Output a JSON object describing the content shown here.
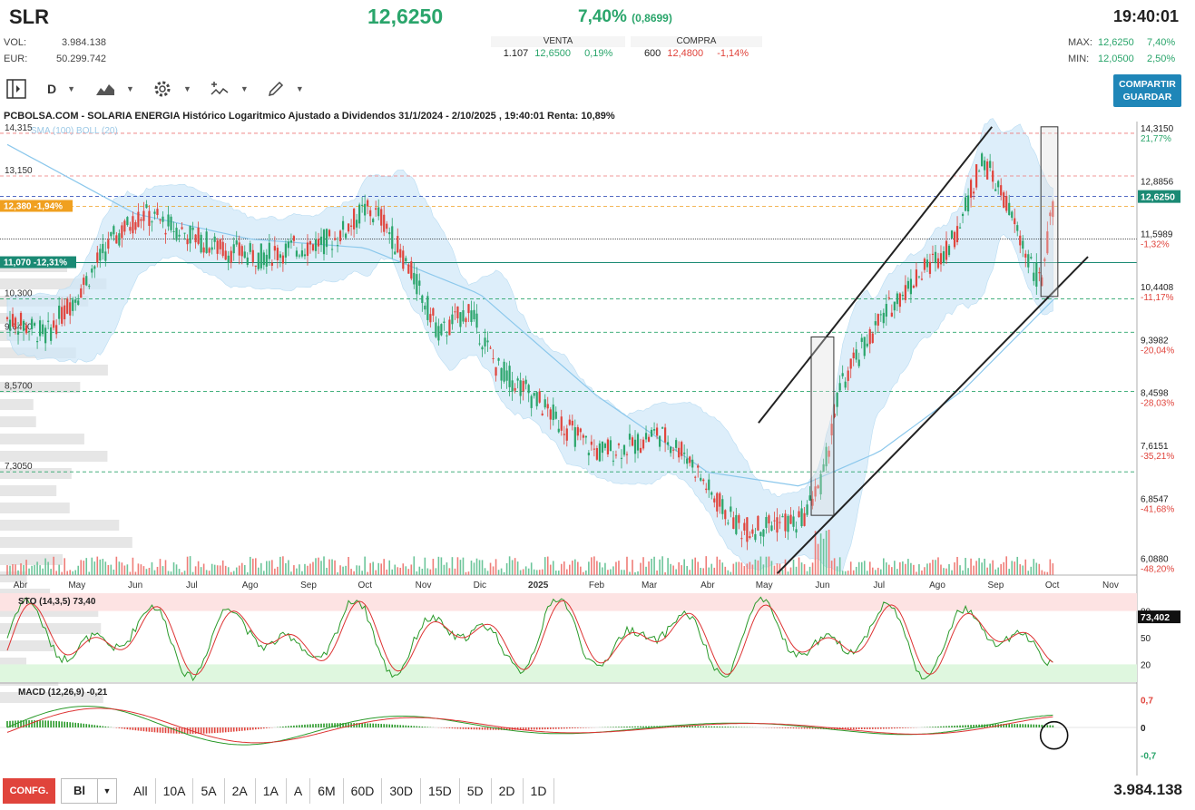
{
  "header": {
    "ticker": "SLR",
    "price": "12,6250",
    "change_pct": "7,40%",
    "change_abs": "(0,8699)",
    "time": "19:40:01",
    "vol_label": "VOL:",
    "vol_value": "3.984.138",
    "eur_label": "EUR:",
    "eur_value": "50.299.742",
    "max_label": "MAX:",
    "max_value": "12,6250",
    "max_pct": "7,40%",
    "min_label": "MIN:",
    "min_value": "12,0500",
    "min_pct": "2,50%"
  },
  "book": {
    "venta_title": "VENTA",
    "venta_qty": "1.107",
    "venta_price": "12,6500",
    "venta_pct": "0,19%",
    "compra_title": "COMPRA",
    "compra_qty": "600",
    "compra_price": "12,4800",
    "compra_pct": "-1,14%"
  },
  "toolbar": {
    "panel_icon": "panel-toggle-icon",
    "period": "D",
    "chart_type_icon": "mountain-chart-icon",
    "settings_icon": "gear-icon",
    "indicators_icon": "indicators-icon",
    "draw_icon": "pencil-icon",
    "share_line1": "COMPARTIR",
    "share_line2": "GUARDAR"
  },
  "colors": {
    "up": "#2aa56b",
    "down": "#e0443c",
    "boll": "#cfe7f8",
    "sma": "#8cc8ec",
    "accent": "#1f86b8"
  },
  "chart_data": {
    "type": "line",
    "title": "PCBOLSA.COM - SOLARIA ENERGIA Histórico Logaritmico Ajustado a Dividendos 31/1/2024 - 2/10/2025 , 19:40:01 Renta: 10,89%",
    "legend": "SMA (100)  BOLL (20)",
    "scale": "log",
    "ylim": [
      5.95,
      14.6
    ],
    "x_labels": [
      "Abr",
      "May",
      "Jun",
      "Jul",
      "Ago",
      "Sep",
      "Oct",
      "Nov",
      "Dic",
      "2025",
      "Feb",
      "Mar",
      "Abr",
      "May",
      "Jun",
      "Jul",
      "Ago",
      "Sep",
      "Oct",
      "Nov"
    ],
    "left_levels": [
      "14,315",
      "13,150",
      "10,300",
      "9,6400",
      "8,5700",
      "7,3050"
    ],
    "right_levels": [
      {
        "value": "14,3150",
        "pct": "21,77%"
      },
      {
        "value": "12,8856",
        "pct": ""
      },
      {
        "value": "11,5989",
        "pct": "-1,32%"
      },
      {
        "value": "10,4408",
        "pct": "-11,17%"
      },
      {
        "value": "9,3982",
        "pct": "-20,04%"
      },
      {
        "value": "8,4598",
        "pct": "-28,03%"
      },
      {
        "value": "7,6151",
        "pct": "-35,21%"
      },
      {
        "value": "6,8547",
        "pct": "-41,68%"
      },
      {
        "value": "6,0880",
        "pct": "-48,20%"
      }
    ],
    "last_price_tag": "12,6250",
    "orange_tag": "12,380 -1,94%",
    "green_tag": "11,070 -12,31%",
    "series": [
      {
        "name": "Precio",
        "x": [
          "2024-03-25",
          "2024-04-15",
          "2024-05-01",
          "2024-05-20",
          "2024-06-05",
          "2024-06-25",
          "2024-07-15",
          "2024-08-05",
          "2024-08-25",
          "2024-09-15",
          "2024-10-01",
          "2024-10-10",
          "2024-10-25",
          "2024-11-10",
          "2024-11-25",
          "2024-12-10",
          "2024-12-25",
          "2025-01-15",
          "2025-02-01",
          "2025-02-20",
          "2025-03-05",
          "2025-03-20",
          "2025-04-05",
          "2025-04-20",
          "2025-05-05",
          "2025-05-20",
          "2025-06-01",
          "2025-06-10",
          "2025-06-25",
          "2025-07-10",
          "2025-07-25",
          "2025-08-10",
          "2025-08-25",
          "2025-09-05",
          "2025-09-15",
          "2025-09-25",
          "2025-10-02"
        ],
        "values": [
          9.9,
          9.6,
          10.4,
          11.6,
          12.2,
          11.8,
          11.4,
          11.2,
          11.4,
          11.6,
          12.3,
          12.1,
          10.9,
          9.6,
          10.1,
          9.0,
          8.6,
          8.0,
          7.6,
          7.7,
          7.9,
          7.6,
          6.9,
          6.5,
          6.6,
          6.6,
          7.2,
          8.6,
          9.5,
          10.3,
          10.9,
          11.6,
          13.6,
          12.6,
          11.5,
          10.6,
          12.6
        ]
      },
      {
        "name": "SMA (100)",
        "x": [
          "2024-03-25",
          "2024-06-01",
          "2024-08-01",
          "2024-10-01",
          "2024-12-01",
          "2025-02-01",
          "2025-04-01",
          "2025-05-20",
          "2025-07-01",
          "2025-08-15",
          "2025-10-02"
        ],
        "values": [
          14.0,
          12.2,
          11.6,
          11.4,
          10.4,
          8.5,
          7.3,
          7.1,
          7.6,
          8.6,
          10.3
        ]
      }
    ],
    "sto": {
      "label": "STO (14,3,5)",
      "value": "73,40",
      "tag": "73,402",
      "levels": [
        "80",
        "50",
        "20"
      ],
      "ylim": [
        0,
        100
      ]
    },
    "macd": {
      "label": "MACD (12,26,9)",
      "value": "-0,21",
      "levels": [
        "0,7",
        "0",
        "-0,7"
      ],
      "ylim": [
        -1.0,
        1.0
      ]
    }
  },
  "footer": {
    "config": "CONFG.",
    "select_value": "Bl",
    "ranges": [
      "All",
      "10A",
      "5A",
      "2A",
      "1A",
      "A",
      "6M",
      "60D",
      "30D",
      "15D",
      "5D",
      "2D",
      "1D"
    ],
    "total_volume": "3.984.138"
  }
}
